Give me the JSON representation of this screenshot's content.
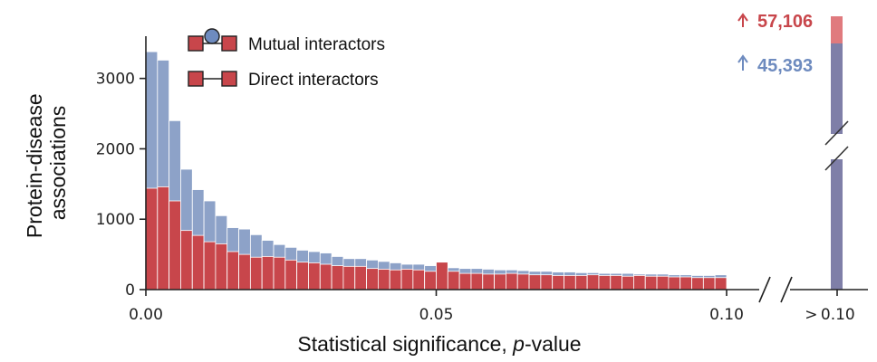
{
  "chart_data": {
    "type": "bar",
    "stacked_overlay": true,
    "xlabel_main": "Statistical significance, ",
    "xlabel_italic": "p",
    "xlabel_suffix": "-value",
    "ylabel_line1": "Protein-disease",
    "ylabel_line2": "associations",
    "xlim": [
      0,
      0.1
    ],
    "ylim": [
      0,
      3600
    ],
    "bin_width": 0.002,
    "x_tick_labels": [
      "0.00",
      "0.05",
      "0.10"
    ],
    "x_tick_values": [
      0,
      0.05,
      0.1
    ],
    "y_tick_labels": [
      "0",
      "1000",
      "2000",
      "3000"
    ],
    "y_tick_values": [
      0,
      1000,
      2000,
      3000
    ],
    "break_category": "> 0.10",
    "legend_placement": "top-left",
    "colors": {
      "mutual": "#8da2c8",
      "direct": "#c8464b",
      "overflow_red": "#e07a7e",
      "overflow_blue": "#7f7fa8",
      "ann_red": "#c8464b",
      "ann_blue": "#6e8bbf"
    },
    "series": [
      {
        "name": "Mutual interactors",
        "values": [
          3380,
          3260,
          2400,
          1710,
          1420,
          1260,
          1050,
          880,
          860,
          780,
          700,
          640,
          600,
          560,
          540,
          520,
          470,
          440,
          440,
          420,
          400,
          380,
          360,
          360,
          340,
          320,
          310,
          300,
          300,
          290,
          280,
          280,
          270,
          260,
          260,
          250,
          250,
          240,
          240,
          230,
          230,
          230,
          220,
          220,
          220,
          210,
          210,
          200,
          200,
          210
        ]
      },
      {
        "name": "Direct interactors",
        "values": [
          1440,
          1460,
          1260,
          840,
          770,
          680,
          650,
          540,
          500,
          460,
          470,
          460,
          420,
          390,
          380,
          360,
          340,
          330,
          330,
          300,
          290,
          280,
          290,
          280,
          260,
          390,
          260,
          230,
          230,
          220,
          220,
          230,
          220,
          210,
          210,
          200,
          200,
          200,
          210,
          200,
          200,
          190,
          200,
          190,
          190,
          180,
          180,
          170,
          170,
          170
        ]
      }
    ],
    "overflow": {
      "mutual_label": "45,393",
      "direct_label": "57,106",
      "mutual_value": 45393,
      "direct_value": 57106
    }
  }
}
